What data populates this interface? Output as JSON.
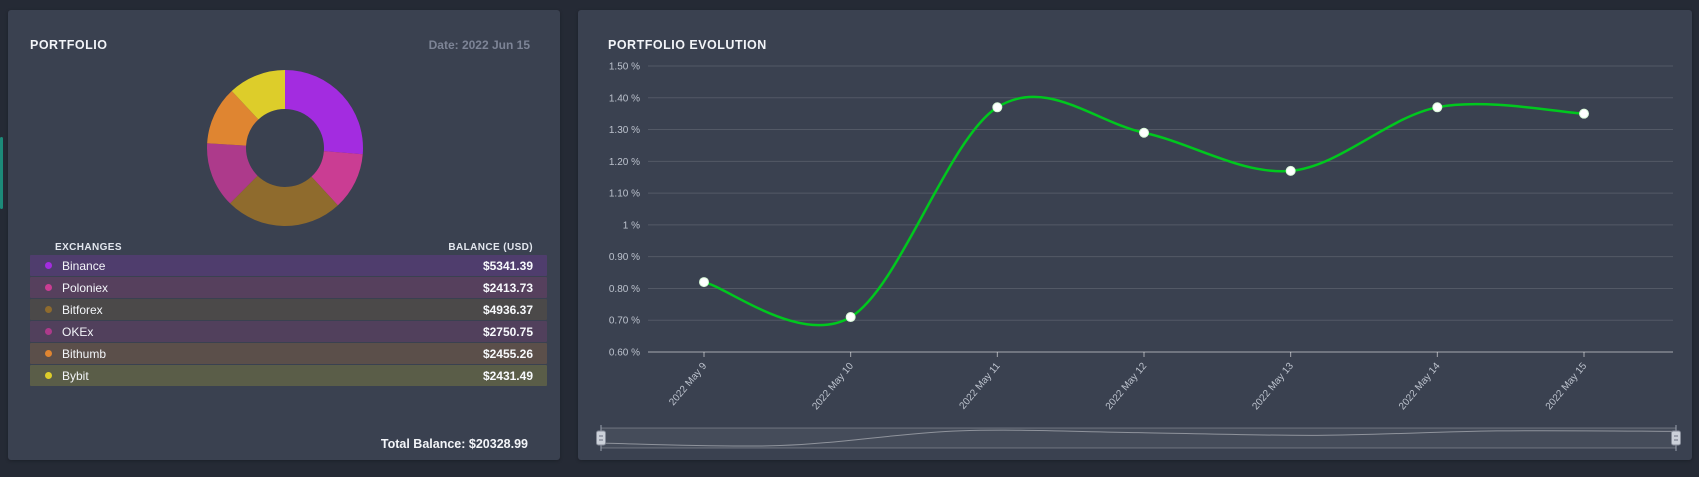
{
  "app": {
    "background": "#252a35",
    "panel_background": "#3a4150",
    "accent_color": "#1c8a79"
  },
  "portfolio_panel": {
    "title": "PORTFOLIO",
    "date_label": "Date: 2022 Jun 15",
    "table": {
      "columns": [
        "EXCHANGES",
        "BALANCE (USD)"
      ],
      "rows": [
        {
          "exchange": "Binance",
          "balance": "$5341.39",
          "color": "#a32ce0"
        },
        {
          "exchange": "Poloniex",
          "balance": "$2413.73",
          "color": "#ca3d93"
        },
        {
          "exchange": "Bitforex",
          "balance": "$4936.37",
          "color": "#8f6b2d"
        },
        {
          "exchange": "OKEx",
          "balance": "$2750.75",
          "color": "#ad3a8b"
        },
        {
          "exchange": "Bithumb",
          "balance": "$2455.26",
          "color": "#df8531"
        },
        {
          "exchange": "Bybit",
          "balance": "$2431.49",
          "color": "#ddcd2a"
        }
      ]
    },
    "total_label": "Total Balance:",
    "total_value": "$20328.99"
  },
  "evolution_panel": {
    "title": "PORTFOLIO EVOLUTION"
  },
  "chart_data": [
    {
      "type": "pie",
      "title": "PORTFOLIO",
      "labels": [
        "Binance",
        "Poloniex",
        "Bitforex",
        "OKEx",
        "Bithumb",
        "Bybit"
      ],
      "values": [
        5341.39,
        2413.73,
        4936.37,
        2750.75,
        2455.26,
        2431.49
      ],
      "colors": [
        "#a32ce0",
        "#ca3d93",
        "#8f6b2d",
        "#ad3a8b",
        "#df8531",
        "#ddcd2a"
      ],
      "total": 20328.99,
      "donut": true,
      "inner_radius_ratio": 0.5,
      "start_angle_deg": 0
    },
    {
      "type": "line",
      "title": "PORTFOLIO EVOLUTION",
      "x": [
        "2022 May 9",
        "2022 May 10",
        "2022 May 11",
        "2022 May 12",
        "2022 May 13",
        "2022 May 14",
        "2022 May 15"
      ],
      "values": [
        0.82,
        0.71,
        1.37,
        1.29,
        1.17,
        1.37,
        1.35
      ],
      "unit": "%",
      "ylim": [
        0.6,
        1.5
      ],
      "yticks": [
        {
          "value": 1.5,
          "label": "1.50 %"
        },
        {
          "value": 1.4,
          "label": "1.40 %"
        },
        {
          "value": 1.3,
          "label": "1.30 %"
        },
        {
          "value": 1.2,
          "label": "1.20 %"
        },
        {
          "value": 1.1,
          "label": "1.10 %"
        },
        {
          "value": 1.0,
          "label": "1 %"
        },
        {
          "value": 0.9,
          "label": "0.90 %"
        },
        {
          "value": 0.8,
          "label": "0.80 %"
        },
        {
          "value": 0.7,
          "label": "0.70 %"
        },
        {
          "value": 0.6,
          "label": "0.60 %"
        }
      ],
      "line_color": "#00c81e",
      "marker_color": "#ffffff",
      "grid": true,
      "legend": false,
      "navigator": true,
      "x_label_rotation_deg": -50
    }
  ]
}
